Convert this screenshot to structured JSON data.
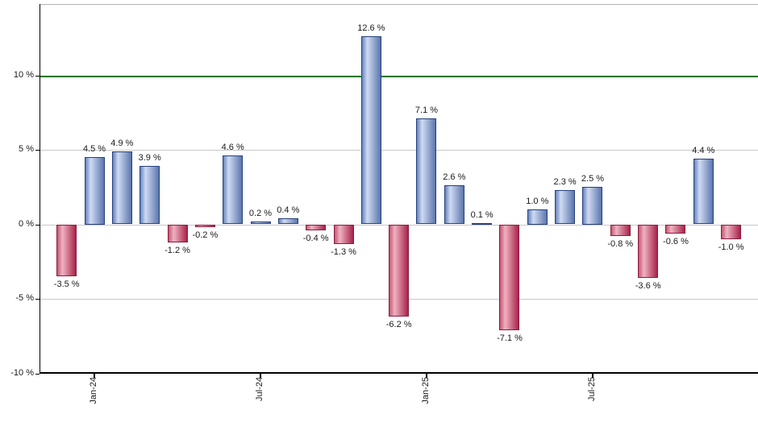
{
  "chart_data": {
    "type": "bar",
    "title": "",
    "unit": "%",
    "bars": [
      {
        "label": "-3.5 %",
        "value": -3.5
      },
      {
        "label": "4.5 %",
        "value": 4.5
      },
      {
        "label": "4.9 %",
        "value": 4.9
      },
      {
        "label": "3.9 %",
        "value": 3.9
      },
      {
        "label": "-1.2 %",
        "value": -1.2
      },
      {
        "label": "-0.2 %",
        "value": -0.2
      },
      {
        "label": "4.6 %",
        "value": 4.6
      },
      {
        "label": "0.2 %",
        "value": 0.2
      },
      {
        "label": "0.4 %",
        "value": 0.4
      },
      {
        "label": "-0.4 %",
        "value": -0.4
      },
      {
        "label": "-1.3 %",
        "value": -1.3
      },
      {
        "label": "12.6 %",
        "value": 12.6
      },
      {
        "label": "-6.2 %",
        "value": -6.2
      },
      {
        "label": "7.1 %",
        "value": 7.1
      },
      {
        "label": "2.6 %",
        "value": 2.6
      },
      {
        "label": "0.1 %",
        "value": 0.1
      },
      {
        "label": "-7.1 %",
        "value": -7.1
      },
      {
        "label": "1.0 %",
        "value": 1.0
      },
      {
        "label": "2.3 %",
        "value": 2.3
      },
      {
        "label": "2.5 %",
        "value": 2.5
      },
      {
        "label": "-0.8 %",
        "value": -0.8
      },
      {
        "label": "-3.6 %",
        "value": -3.6
      },
      {
        "label": "-0.6 %",
        "value": -0.6
      },
      {
        "label": "4.4 %",
        "value": 4.4
      },
      {
        "label": "-1.0 %",
        "value": -1.0
      }
    ],
    "x_ticks": [
      {
        "label": "Jan-24",
        "bar_index": 1
      },
      {
        "label": "Jul-24",
        "bar_index": 7
      },
      {
        "label": "Jan-25",
        "bar_index": 13
      },
      {
        "label": "Jul-25",
        "bar_index": 19
      }
    ],
    "y_ticks": [
      {
        "label": "10 %",
        "value": 10
      },
      {
        "label": "5 %",
        "value": 5
      },
      {
        "label": "0 %",
        "value": 0
      },
      {
        "label": "-5 %",
        "value": -5
      },
      {
        "label": "-10 %",
        "value": -10
      }
    ],
    "ylim": [
      -10,
      14.8
    ],
    "reference_line": {
      "value": 10
    },
    "grid": true,
    "legend": false
  },
  "colors": {
    "positive": {
      "border": "#27417d",
      "edge": "#6583bd",
      "highlight": "#cfdaf2",
      "shade": "#5b76ad"
    },
    "negative": {
      "border": "#8c1c40",
      "edge": "#c45672",
      "highlight": "#efb2c1",
      "shade": "#a82349"
    },
    "reference_line": "#007700",
    "gridline": "#c8c8c8",
    "plot_border_top": "#b3b3b3",
    "axis": "#000000",
    "label_text": "#1a1a1a"
  }
}
